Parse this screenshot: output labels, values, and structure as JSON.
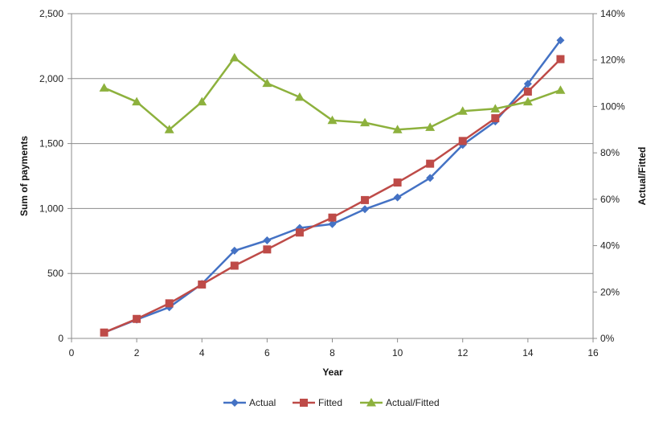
{
  "chart_data": {
    "type": "line",
    "title": "",
    "xlabel": "Year",
    "ylabel": "Sum of payments",
    "y2label": "Actual/Fitted",
    "xlim": [
      0,
      16
    ],
    "xticks": [
      0,
      2,
      4,
      6,
      8,
      10,
      12,
      14,
      16
    ],
    "ylim": [
      0,
      2500
    ],
    "yticks": [
      0,
      500,
      1000,
      1500,
      2000,
      2500
    ],
    "ytick_labels": [
      "0",
      "500",
      "1,000",
      "1,500",
      "2,000",
      "2,500"
    ],
    "y2lim": [
      0,
      140
    ],
    "y2ticks": [
      0,
      20,
      40,
      60,
      80,
      100,
      120,
      140
    ],
    "y2tick_labels": [
      "0%",
      "20%",
      "40%",
      "60%",
      "80%",
      "100%",
      "120%",
      "140%"
    ],
    "grid": "horizontal",
    "legend_position": "bottom",
    "x": [
      1,
      2,
      3,
      4,
      5,
      6,
      7,
      8,
      9,
      10,
      11,
      12,
      13,
      14,
      15
    ],
    "series": [
      {
        "name": "Actual",
        "axis": "left",
        "marker": "diamond",
        "color": "#4472C4",
        "values": [
          45,
          145,
          240,
          420,
          675,
          755,
          850,
          880,
          995,
          1085,
          1235,
          1490,
          1670,
          1960,
          2295
        ]
      },
      {
        "name": "Fitted",
        "axis": "left",
        "marker": "square",
        "color": "#BE4B48",
        "values": [
          45,
          150,
          270,
          415,
          560,
          685,
          815,
          930,
          1065,
          1200,
          1345,
          1520,
          1695,
          1900,
          2150
        ]
      },
      {
        "name": "Actual/Fitted",
        "axis": "right",
        "marker": "triangle",
        "color": "#8DB13D",
        "values": [
          108,
          102,
          90,
          102,
          121,
          110,
          104,
          94,
          93,
          90,
          91,
          98,
          99,
          102,
          107
        ]
      }
    ]
  }
}
